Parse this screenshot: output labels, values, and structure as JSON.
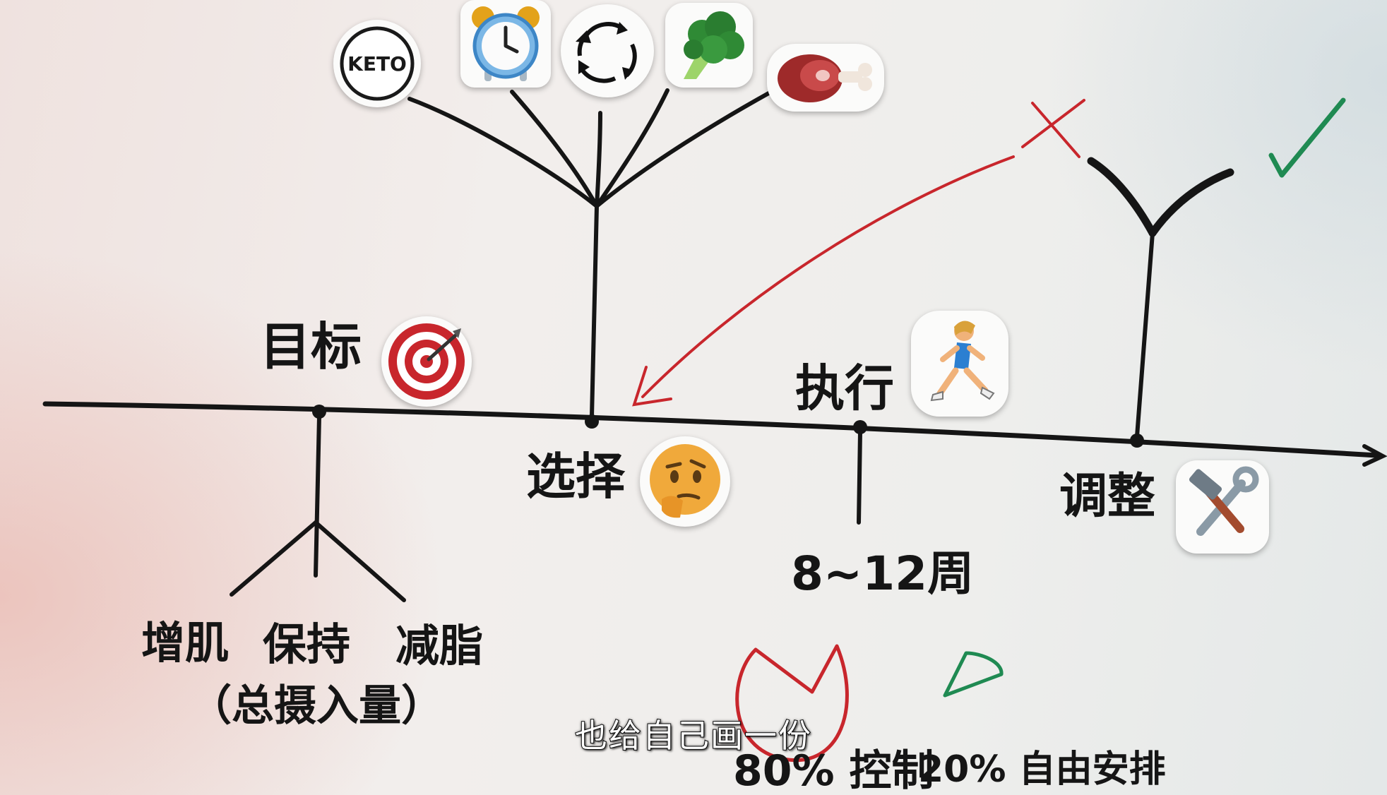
{
  "nodes": {
    "goal": "目标",
    "choice": "选择",
    "execute": "执行",
    "adjust": "调整"
  },
  "goal_branches": [
    "增肌",
    "保持",
    "减脂"
  ],
  "goal_note": "（总摄入量）",
  "duration": "8~12周",
  "keto_label": "KETO",
  "split_note": {
    "control": "80% 控制",
    "free": "20% 自由安排"
  },
  "subtitle": "也给自己画一份",
  "icons": [
    "keto-badge-icon",
    "alarm-clock-icon",
    "cycle-arrows-icon",
    "broccoli-icon",
    "meat-icon",
    "target-icon",
    "thinking-face-icon",
    "runner-icon",
    "hammer-wrench-icon",
    "cross-mark-icon",
    "check-mark-icon"
  ],
  "colors": {
    "ink": "#151515",
    "red": "#c8262c",
    "green": "#1f8a52"
  }
}
